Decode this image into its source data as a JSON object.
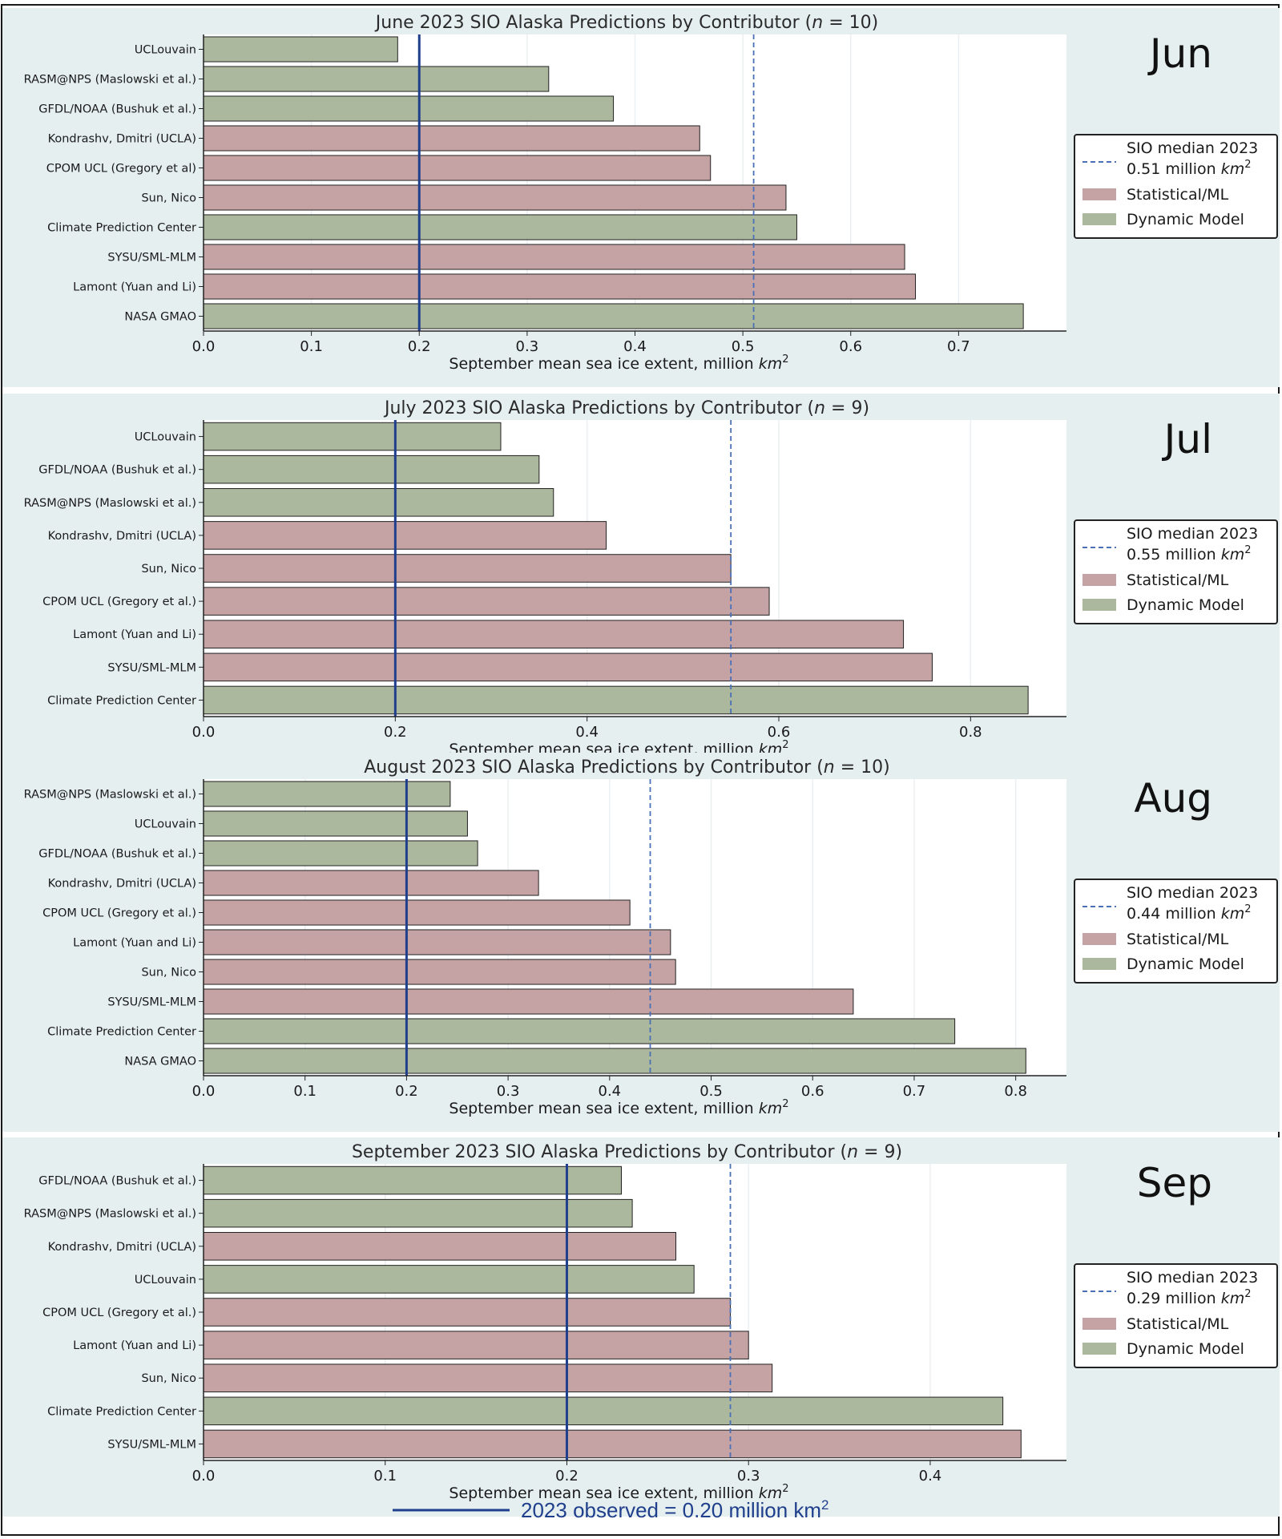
{
  "chart_data": [
    {
      "type": "bar",
      "orientation": "horizontal",
      "month": "Jun",
      "title": "June 2023 SIO Alaska Predictions by Contributor (",
      "n": 10,
      "xlabel": "September mean sea ice extent, million ",
      "xlabel_unit": "km",
      "xlim": [
        0,
        0.8
      ],
      "xticks": [
        "0.0",
        "0.1",
        "0.2",
        "0.3",
        "0.4",
        "0.5",
        "0.6",
        "0.7"
      ],
      "xtick_values": [
        0,
        0.1,
        0.2,
        0.3,
        0.4,
        0.5,
        0.6,
        0.7
      ],
      "grid": "vertical",
      "legend_position": "right",
      "median": 0.51,
      "observed": 0.2,
      "legend": {
        "median_line1": "SIO median 2023",
        "median_line2": "0.51 million ",
        "statistical": "Statistical/ML",
        "dynamic": "Dynamic Model"
      },
      "categories": [
        "UCLouvain",
        "RASM@NPS (Maslowski et al.)",
        "GFDL/NOAA (Bushuk et al.)",
        "Kondrashv, Dmitri (UCLA)",
        "CPOM UCL (Gregory et al)",
        "Sun, Nico",
        "Climate Prediction Center",
        "SYSU/SML-MLM",
        "Lamont (Yuan and Li)",
        "NASA GMAO"
      ],
      "values": [
        0.18,
        0.32,
        0.38,
        0.46,
        0.47,
        0.54,
        0.55,
        0.65,
        0.66,
        0.76
      ],
      "methods": [
        "dynamic",
        "dynamic",
        "dynamic",
        "statistical",
        "statistical",
        "statistical",
        "dynamic",
        "statistical",
        "statistical",
        "dynamic"
      ]
    },
    {
      "type": "bar",
      "orientation": "horizontal",
      "month": "Jul",
      "title": "July 2023 SIO Alaska Predictions by Contributor (",
      "n": 9,
      "xlabel": "September mean sea ice extent, million ",
      "xlabel_unit": "km",
      "xlim": [
        0,
        0.9
      ],
      "xticks": [
        "0.0",
        "0.2",
        "0.4",
        "0.6",
        "0.8"
      ],
      "xtick_values": [
        0,
        0.2,
        0.4,
        0.6,
        0.8
      ],
      "grid": "vertical",
      "legend_position": "right",
      "median": 0.55,
      "observed": 0.2,
      "legend": {
        "median_line1": "SIO median 2023",
        "median_line2": "0.55 million ",
        "statistical": "Statistical/ML",
        "dynamic": "Dynamic Model"
      },
      "categories": [
        "UCLouvain",
        "GFDL/NOAA (Bushuk et al.)",
        "RASM@NPS (Maslowski et al.)",
        "Kondrashv, Dmitri (UCLA)",
        "Sun, Nico",
        "CPOM UCL (Gregory et al.)",
        "Lamont (Yuan and Li)",
        "SYSU/SML-MLM",
        "Climate Prediction Center"
      ],
      "values": [
        0.31,
        0.35,
        0.365,
        0.42,
        0.55,
        0.59,
        0.73,
        0.76,
        0.86
      ],
      "methods": [
        "dynamic",
        "dynamic",
        "dynamic",
        "statistical",
        "statistical",
        "statistical",
        "statistical",
        "statistical",
        "dynamic"
      ]
    },
    {
      "type": "bar",
      "orientation": "horizontal",
      "month": "Aug",
      "title": "August 2023 SIO Alaska Predictions by Contributor (",
      "n": 10,
      "xlabel": "September mean sea ice extent, million ",
      "xlabel_unit": "km",
      "xlim": [
        0,
        0.85
      ],
      "xticks": [
        "0.0",
        "0.1",
        "0.2",
        "0.3",
        "0.4",
        "0.5",
        "0.6",
        "0.7",
        "0.8"
      ],
      "xtick_values": [
        0,
        0.1,
        0.2,
        0.3,
        0.4,
        0.5,
        0.6,
        0.7,
        0.8
      ],
      "grid": "vertical",
      "legend_position": "right",
      "median": 0.44,
      "observed": 0.2,
      "legend": {
        "median_line1": "SIO median 2023",
        "median_line2": "0.44 million ",
        "statistical": "Statistical/ML",
        "dynamic": "Dynamic Model"
      },
      "categories": [
        "RASM@NPS (Maslowski et al.)",
        "UCLouvain",
        "GFDL/NOAA (Bushuk et al.)",
        "Kondrashv, Dmitri (UCLA)",
        "CPOM UCL (Gregory et al.)",
        "Lamont (Yuan and Li)",
        "Sun,  Nico",
        "SYSU/SML-MLM",
        "Climate Prediction Center",
        "NASA GMAO"
      ],
      "values": [
        0.243,
        0.26,
        0.27,
        0.33,
        0.42,
        0.46,
        0.465,
        0.64,
        0.74,
        0.81
      ],
      "methods": [
        "dynamic",
        "dynamic",
        "dynamic",
        "statistical",
        "statistical",
        "statistical",
        "statistical",
        "statistical",
        "dynamic",
        "dynamic"
      ]
    },
    {
      "type": "bar",
      "orientation": "horizontal",
      "month": "Sep",
      "title": "September 2023 SIO Alaska Predictions by Contributor (",
      "n": 9,
      "xlabel": "September mean sea ice extent, million ",
      "xlabel_unit": "km",
      "xlim": [
        0,
        0.475
      ],
      "xticks": [
        "0.0",
        "0.1",
        "0.2",
        "0.3",
        "0.4"
      ],
      "xtick_values": [
        0,
        0.1,
        0.2,
        0.3,
        0.4
      ],
      "grid": "vertical",
      "legend_position": "right",
      "median": 0.29,
      "observed": 0.2,
      "legend": {
        "median_line1": "SIO median 2023",
        "median_line2": "0.29 million ",
        "statistical": "Statistical/ML",
        "dynamic": "Dynamic Model"
      },
      "categories": [
        "GFDL/NOAA (Bushuk et al.)",
        "RASM@NPS (Maslowski et al.)",
        "Kondrashv, Dmitri (UCLA)",
        "UCLouvain",
        "CPOM UCL (Gregory et al.)",
        "Lamont (Yuan and Li)",
        "Sun, Nico",
        "Climate Prediction Center",
        "SYSU/SML-MLM"
      ],
      "values": [
        0.23,
        0.236,
        0.26,
        0.27,
        0.29,
        0.3,
        0.313,
        0.44,
        0.45
      ],
      "methods": [
        "dynamic",
        "dynamic",
        "statistical",
        "dynamic",
        "statistical",
        "statistical",
        "statistical",
        "dynamic",
        "statistical"
      ]
    }
  ],
  "colors": {
    "statistical": "#c5a2a4",
    "dynamic": "#acb89d",
    "median_line": "#4a70b8",
    "observed_line": "#1f3f8c",
    "panel_bg": "#e6eff0",
    "plot_bg": "#ffffff"
  },
  "footer": {
    "label": "2023 observed = 0.20 million km",
    "superscript": "2"
  }
}
